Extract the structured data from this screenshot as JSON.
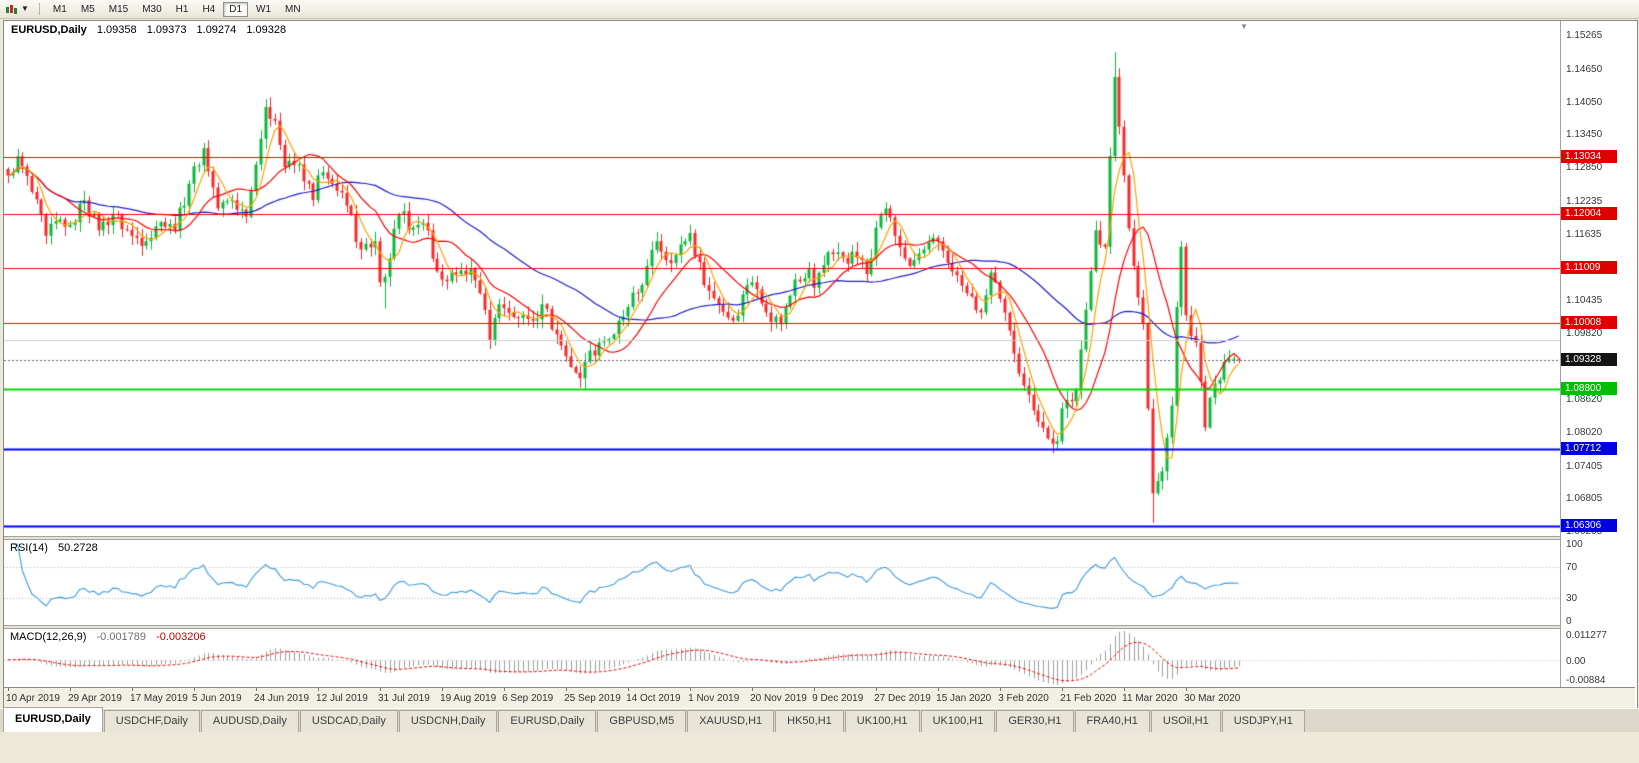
{
  "toolbar": {
    "timeframes": [
      "M1",
      "M5",
      "M15",
      "M30",
      "H1",
      "H4",
      "D1",
      "W1",
      "MN"
    ],
    "active": "D1"
  },
  "chart": {
    "title": "EURUSD,Daily",
    "open": "1.09358",
    "high": "1.09373",
    "low": "1.09274",
    "close": "1.09328"
  },
  "price_axis": {
    "labels": [
      "1.15265",
      "1.14650",
      "1.14050",
      "1.13450",
      "1.12850",
      "1.12235",
      "1.11635",
      "1.10435",
      "1.09820",
      "1.08620",
      "1.08020",
      "1.07405",
      "1.06805",
      "1.06205"
    ],
    "badges": [
      {
        "label": "1.13034",
        "price": 1.13034,
        "color": "#e00000"
      },
      {
        "label": "1.12004",
        "price": 1.12004,
        "color": "#e00000"
      },
      {
        "label": "1.11009",
        "price": 1.11009,
        "color": "#e00000"
      },
      {
        "label": "1.10008",
        "price": 1.10008,
        "color": "#e00000"
      },
      {
        "label": "1.09328",
        "price": 1.09328,
        "color": "#141414"
      },
      {
        "label": "1.08800",
        "price": 1.088,
        "color": "#00be00"
      },
      {
        "label": "1.07712",
        "price": 1.07712,
        "color": "#0000e0"
      },
      {
        "label": "1.06306",
        "price": 1.06306,
        "color": "#0000e0"
      }
    ]
  },
  "rsi": {
    "label": "RSI(14)",
    "value": "50.2728",
    "levels": [
      "100",
      "70",
      "30",
      "0"
    ]
  },
  "macd": {
    "label": "MACD(12,26,9)",
    "main_value": "-0.001789",
    "signal_value": "-0.003206",
    "axis": [
      "0.011277",
      "0.00",
      "-0.00884"
    ]
  },
  "dates": [
    "10 Apr 2019",
    "29 Apr 2019",
    "17 May 2019",
    "5 Jun 2019",
    "24 Jun 2019",
    "12 Jul 2019",
    "31 Jul 2019",
    "19 Aug 2019",
    "6 Sep 2019",
    "25 Sep 2019",
    "14 Oct 2019",
    "1 Nov 2019",
    "20 Nov 2019",
    "9 Dec 2019",
    "27 Dec 2019",
    "15 Jan 2020",
    "3 Feb 2020",
    "21 Feb 2020",
    "11 Mar 2020",
    "30 Mar 2020"
  ],
  "tabs": [
    "EURUSD,Daily",
    "USDCHF,Daily",
    "AUDUSD,Daily",
    "USDCAD,Daily",
    "USDCNH,Daily",
    "EURUSD,Daily",
    "GBPUSD,M5",
    "XAUUSD,H1",
    "HK50,H1",
    "UK100,H1",
    "UK100,H1",
    "GER30,H1",
    "FRA40,H1",
    "USOil,H1",
    "USDJPY,H1"
  ],
  "active_tab": 0,
  "chart_data": {
    "type": "candlestick",
    "symbol": "EURUSD",
    "timeframe": "Daily",
    "bars": 259,
    "bar_step": 4.77,
    "noise": 0.003,
    "y_range": [
      1.0612,
      1.1552
    ],
    "anchors": [
      [
        0,
        1.127
      ],
      [
        2,
        1.1305
      ],
      [
        5,
        1.124
      ],
      [
        8,
        1.116
      ],
      [
        11,
        1.119
      ],
      [
        13,
        1.118
      ],
      [
        16,
        1.1225
      ],
      [
        19,
        1.117
      ],
      [
        22,
        1.12
      ],
      [
        26,
        1.116
      ],
      [
        29,
        1.115
      ],
      [
        32,
        1.1185
      ],
      [
        35,
        1.117
      ],
      [
        38,
        1.1255
      ],
      [
        41,
        1.132
      ],
      [
        44,
        1.121
      ],
      [
        47,
        1.1225
      ],
      [
        50,
        1.1195
      ],
      [
        52,
        1.129
      ],
      [
        54,
        1.1395
      ],
      [
        56,
        1.137
      ],
      [
        58,
        1.1285
      ],
      [
        61,
        1.129
      ],
      [
        64,
        1.1225
      ],
      [
        65,
        1.127
      ],
      [
        68,
        1.1255
      ],
      [
        71,
        1.1215
      ],
      [
        74,
        1.1135
      ],
      [
        77,
        1.115
      ],
      [
        78,
        1.1075
      ],
      [
        79,
        1.1085
      ],
      [
        82,
        1.12
      ],
      [
        85,
        1.1175
      ],
      [
        88,
        1.117
      ],
      [
        90,
        1.1095
      ],
      [
        91,
        1.108
      ],
      [
        94,
        1.109
      ],
      [
        97,
        1.11
      ],
      [
        99,
        1.1055
      ],
      [
        101,
        1.097
      ],
      [
        103,
        1.1035
      ],
      [
        104,
        1.1028
      ],
      [
        107,
        1.101
      ],
      [
        110,
        1.1005
      ],
      [
        112,
        1.1035
      ],
      [
        115,
        1.098
      ],
      [
        117,
        1.094
      ],
      [
        120,
        1.09
      ],
      [
        121,
        1.093
      ],
      [
        124,
        1.0965
      ],
      [
        127,
        1.098
      ],
      [
        130,
        1.103
      ],
      [
        133,
        1.107
      ],
      [
        136,
        1.115
      ],
      [
        139,
        1.111
      ],
      [
        142,
        1.115
      ],
      [
        143,
        1.1165
      ],
      [
        146,
        1.107
      ],
      [
        149,
        1.1035
      ],
      [
        152,
        1.1005
      ],
      [
        155,
        1.107
      ],
      [
        156,
        1.1075
      ],
      [
        159,
        1.102
      ],
      [
        162,
        1.1
      ],
      [
        165,
        1.108
      ],
      [
        168,
        1.11
      ],
      [
        169,
        1.1065
      ],
      [
        172,
        1.113
      ],
      [
        175,
        1.112
      ],
      [
        178,
        1.112
      ],
      [
        180,
        1.109
      ],
      [
        182,
        1.1175
      ],
      [
        184,
        1.121
      ],
      [
        186,
        1.116
      ],
      [
        189,
        1.1105
      ],
      [
        192,
        1.1135
      ],
      [
        195,
        1.115
      ],
      [
        198,
        1.1095
      ],
      [
        201,
        1.1055
      ],
      [
        204,
        1.102
      ],
      [
        206,
        1.1093
      ],
      [
        208,
        1.1045
      ],
      [
        211,
        1.0945
      ],
      [
        214,
        1.087
      ],
      [
        218,
        1.079
      ],
      [
        220,
        1.0785
      ],
      [
        221,
        1.0845
      ],
      [
        224,
        1.088
      ],
      [
        226,
        1.1025
      ],
      [
        228,
        1.117
      ],
      [
        230,
        1.114
      ],
      [
        232,
        1.145
      ],
      [
        234,
        1.127
      ],
      [
        236,
        1.1105
      ],
      [
        238,
        1.1
      ],
      [
        240,
        1.069
      ],
      [
        242,
        1.073
      ],
      [
        244,
        1.085
      ],
      [
        245,
        1.103
      ],
      [
        246,
        1.114
      ],
      [
        247,
        1.1015
      ],
      [
        249,
        1.0965
      ],
      [
        251,
        1.081
      ],
      [
        253,
        1.089
      ],
      [
        255,
        1.093
      ],
      [
        257,
        1.09358
      ],
      [
        258,
        1.09328
      ]
    ],
    "wick_overrides": [
      {
        "i": 79,
        "low": 1.1027
      },
      {
        "i": 121,
        "low": 1.0879
      },
      {
        "i": 232,
        "high": 1.1495
      },
      {
        "i": 240,
        "low": 1.0636
      },
      {
        "i": 258,
        "high": 1.09373,
        "low": 1.09274
      }
    ],
    "ma": [
      {
        "period": 40,
        "color": "#2020c8"
      },
      {
        "period": 13,
        "color": "#ff0000"
      },
      {
        "period": 5,
        "color": "#ffa000"
      }
    ],
    "hlines": [
      {
        "price": 1.097,
        "color": "#cdcdcd",
        "w": 1
      },
      {
        "price": 1.13034,
        "color": "#ff0000",
        "w": 1
      },
      {
        "price": 1.12004,
        "color": "#ff0000",
        "w": 1
      },
      {
        "price": 1.11009,
        "color": "#ff0000",
        "w": 1
      },
      {
        "price": 1.10008,
        "color": "#ff0000",
        "w": 1
      },
      {
        "price": 1.088,
        "color": "#00d800",
        "w": 2
      },
      {
        "price": 1.07712,
        "color": "#0000ff",
        "w": 2
      },
      {
        "price": 1.06306,
        "color": "#0000ff",
        "w": 2
      },
      {
        "price": 1.09328,
        "color": "#666666",
        "w": 1,
        "dash": true
      }
    ],
    "rsi_period": 14,
    "macd_params": [
      12,
      26,
      9
    ],
    "colors": {
      "up": "#0db83c",
      "down": "#f62b2b",
      "rsi": "#3e9adf",
      "macd_bar": "#9e9e9e",
      "macd_signal": "#ff0000"
    }
  }
}
